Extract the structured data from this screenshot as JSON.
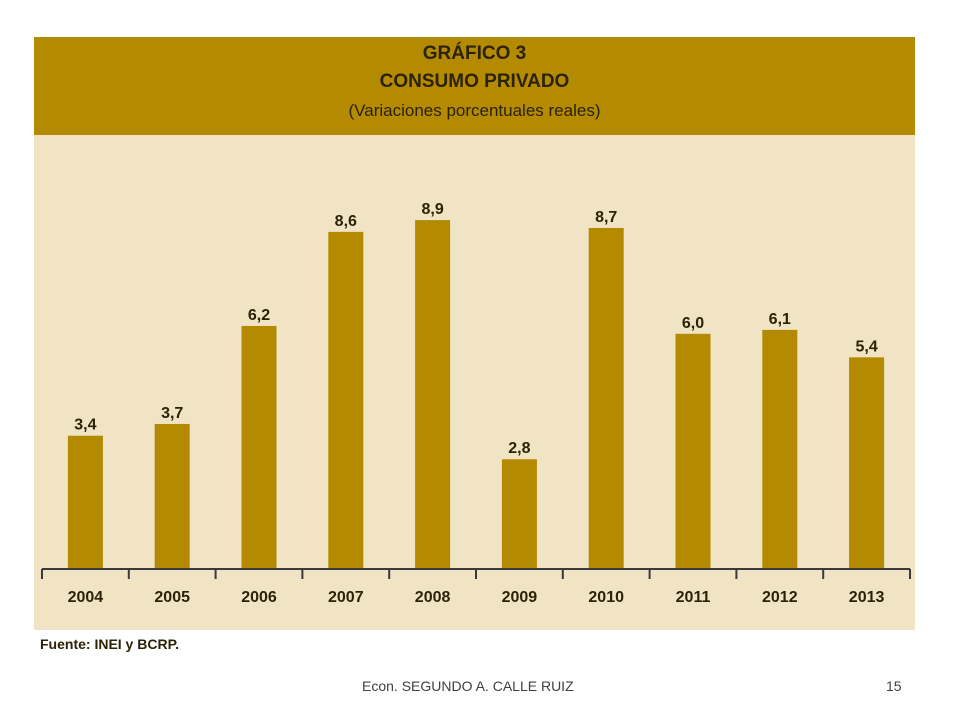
{
  "slide": {
    "source": "Fuente: INEI y BCRP.",
    "footer": "Econ. SEGUNDO A. CALLE RUIZ",
    "page_number": "15"
  },
  "colors": {
    "header_bg": "#b38a00",
    "plot_bg": "#f1e4c4",
    "bar": "#b38a00",
    "text": "#2b2208"
  },
  "chart_data": {
    "type": "bar",
    "title": "GRÁFICO 3",
    "subtitle": "CONSUMO PRIVADO",
    "note": "(Variaciones porcentuales reales)",
    "categories": [
      "2004",
      "2005",
      "2006",
      "2007",
      "2008",
      "2009",
      "2010",
      "2011",
      "2012",
      "2013"
    ],
    "values": [
      3.4,
      3.7,
      6.2,
      8.6,
      8.9,
      2.8,
      8.7,
      6.0,
      6.1,
      5.4
    ],
    "value_labels": [
      "3,4",
      "3,7",
      "6,2",
      "8,6",
      "8,9",
      "2,8",
      "8,7",
      "6,0",
      "6,1",
      "5,4"
    ],
    "xlabel": "",
    "ylabel": "",
    "ylim": [
      0,
      10
    ],
    "grid": false,
    "legend": "none"
  }
}
